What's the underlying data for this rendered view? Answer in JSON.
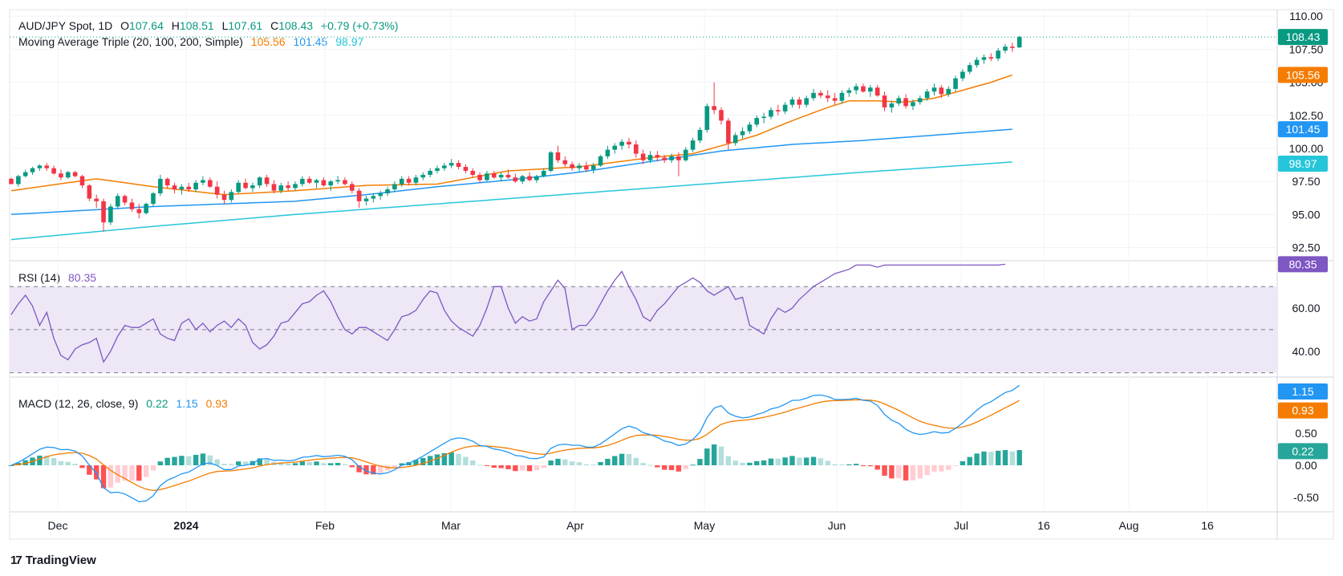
{
  "header": {
    "symbol": "AUD/JPY Spot, 1D",
    "open_label": "O",
    "open": "107.64",
    "high_label": "H",
    "high": "108.51",
    "low_label": "L",
    "low": "107.61",
    "close_label": "C",
    "close": "108.43",
    "change": "+0.79 (+0.73%)",
    "ma_label": "Moving Average Triple (20, 100, 200, Simple)",
    "ma20": "105.56",
    "ma100": "101.45",
    "ma200": "98.97",
    "rsi_label": "RSI (14)",
    "rsi": "80.35",
    "macd_label": "MACD (12, 26, close, 9)",
    "macd_hist": "0.22",
    "macd": "1.15",
    "macd_signal": "0.93"
  },
  "footer": {
    "brand": "TradingView"
  },
  "colors": {
    "up": "#089981",
    "down": "#f23645",
    "ma20": "#f57c00",
    "ma100": "#2196f3",
    "ma200": "#26c6da",
    "rsi": "#7e57c2",
    "rsi_band": "#ede7f6",
    "macd": "#2196f3",
    "signal": "#f57c00",
    "hist_up_strong": "#26a69a",
    "hist_up_weak": "#b2dfdb",
    "hist_down_strong": "#ff5252",
    "hist_down_weak": "#ffcdd2"
  },
  "chart_data": [
    {
      "type": "candlestick",
      "x_ticks": [
        "Dec",
        "2024",
        "Feb",
        "Mar",
        "Apr",
        "May",
        "Jun",
        "Jul",
        "16",
        "Aug",
        "16"
      ],
      "y_ticks": [
        "110.00",
        "107.50",
        "105.00",
        "102.50",
        "100.00",
        "97.50",
        "95.00",
        "92.50"
      ],
      "ylim": [
        91.5,
        110.5
      ],
      "price_tags": {
        "last": "108.43",
        "ma20": "105.56",
        "ma100": "101.45",
        "ma200": "98.97"
      },
      "last_close": 108.43,
      "candles": [
        [
          97.7,
          97.8,
          97.3,
          97.3
        ],
        [
          97.3,
          98.0,
          97.1,
          97.9
        ],
        [
          97.9,
          98.4,
          97.8,
          98.2
        ],
        [
          98.2,
          98.6,
          98.0,
          98.5
        ],
        [
          98.5,
          98.8,
          98.3,
          98.7
        ],
        [
          98.7,
          98.9,
          98.3,
          98.5
        ],
        [
          98.5,
          98.7,
          98.0,
          98.1
        ],
        [
          98.1,
          98.4,
          97.6,
          97.8
        ],
        [
          97.8,
          98.3,
          97.7,
          98.2
        ],
        [
          98.2,
          98.3,
          97.8,
          97.9
        ],
        [
          97.9,
          98.0,
          97.0,
          97.2
        ],
        [
          97.2,
          97.3,
          96.0,
          96.2
        ],
        [
          96.2,
          96.5,
          95.5,
          96.0
        ],
        [
          96.0,
          96.2,
          93.7,
          94.4
        ],
        [
          94.4,
          95.8,
          94.2,
          95.6
        ],
        [
          95.6,
          96.6,
          95.4,
          96.4
        ],
        [
          96.4,
          96.5,
          95.7,
          95.9
        ],
        [
          95.9,
          96.2,
          95.2,
          95.4
        ],
        [
          95.4,
          95.8,
          94.7,
          95.1
        ],
        [
          95.1,
          95.9,
          95.0,
          95.8
        ],
        [
          95.8,
          96.7,
          95.6,
          96.6
        ],
        [
          96.6,
          98.0,
          96.4,
          97.7
        ],
        [
          97.7,
          97.8,
          97.0,
          97.2
        ],
        [
          97.2,
          97.4,
          96.6,
          96.9
        ],
        [
          96.9,
          97.3,
          96.5,
          97.1
        ],
        [
          97.1,
          97.4,
          96.7,
          96.9
        ],
        [
          96.9,
          97.6,
          96.7,
          97.4
        ],
        [
          97.4,
          97.9,
          97.2,
          97.6
        ],
        [
          97.6,
          97.8,
          97.0,
          97.1
        ],
        [
          97.1,
          97.5,
          96.2,
          96.5
        ],
        [
          96.5,
          96.8,
          95.8,
          96.1
        ],
        [
          96.1,
          96.9,
          95.9,
          96.7
        ],
        [
          96.7,
          97.6,
          96.6,
          97.4
        ],
        [
          97.4,
          97.7,
          96.9,
          97.0
        ],
        [
          97.0,
          97.4,
          96.7,
          97.2
        ],
        [
          97.2,
          97.9,
          97.0,
          97.8
        ],
        [
          97.8,
          98.0,
          97.1,
          97.3
        ],
        [
          97.3,
          97.6,
          96.6,
          96.8
        ],
        [
          96.8,
          97.4,
          96.6,
          97.2
        ],
        [
          97.2,
          97.5,
          96.8,
          97.0
        ],
        [
          97.0,
          97.5,
          96.8,
          97.3
        ],
        [
          97.3,
          97.9,
          97.1,
          97.7
        ],
        [
          97.7,
          97.9,
          97.3,
          97.4
        ],
        [
          97.4,
          97.7,
          97.0,
          97.6
        ],
        [
          97.6,
          97.8,
          97.1,
          97.2
        ],
        [
          97.2,
          97.6,
          96.8,
          97.5
        ],
        [
          97.5,
          97.9,
          97.3,
          97.6
        ],
        [
          97.6,
          97.8,
          97.2,
          97.3
        ],
        [
          97.3,
          97.5,
          96.6,
          96.8
        ],
        [
          96.8,
          97.0,
          95.5,
          96.0
        ],
        [
          96.0,
          96.4,
          95.7,
          96.2
        ],
        [
          96.2,
          96.6,
          95.9,
          96.4
        ],
        [
          96.4,
          96.8,
          96.1,
          96.6
        ],
        [
          96.6,
          97.1,
          96.4,
          96.9
        ],
        [
          96.9,
          97.5,
          96.7,
          97.3
        ],
        [
          97.3,
          97.9,
          97.1,
          97.7
        ],
        [
          97.7,
          97.9,
          97.2,
          97.4
        ],
        [
          97.4,
          98.0,
          97.2,
          97.8
        ],
        [
          97.8,
          98.2,
          97.6,
          98.0
        ],
        [
          98.0,
          98.5,
          97.8,
          98.3
        ],
        [
          98.3,
          98.7,
          98.1,
          98.5
        ],
        [
          98.5,
          98.9,
          98.3,
          98.7
        ],
        [
          98.7,
          99.2,
          98.5,
          98.9
        ],
        [
          98.9,
          99.1,
          98.4,
          98.6
        ],
        [
          98.6,
          98.8,
          98.1,
          98.3
        ],
        [
          98.3,
          98.5,
          97.8,
          98.0
        ],
        [
          98.0,
          98.2,
          97.4,
          97.6
        ],
        [
          97.6,
          98.3,
          97.5,
          98.1
        ],
        [
          98.1,
          98.3,
          97.7,
          97.8
        ],
        [
          97.8,
          98.2,
          97.5,
          98.0
        ],
        [
          98.0,
          98.4,
          97.7,
          97.8
        ],
        [
          97.8,
          98.1,
          97.4,
          97.5
        ],
        [
          97.5,
          98.0,
          97.3,
          97.9
        ],
        [
          97.9,
          98.2,
          97.5,
          97.6
        ],
        [
          97.6,
          98.0,
          97.4,
          97.9
        ],
        [
          97.9,
          98.5,
          97.8,
          98.3
        ],
        [
          98.3,
          99.8,
          98.2,
          99.7
        ],
        [
          99.7,
          100.2,
          98.9,
          99.1
        ],
        [
          99.1,
          99.4,
          98.6,
          98.8
        ],
        [
          98.8,
          99.0,
          98.3,
          98.5
        ],
        [
          98.5,
          98.9,
          98.2,
          98.7
        ],
        [
          98.7,
          99.0,
          98.2,
          98.4
        ],
        [
          98.4,
          98.9,
          98.1,
          98.7
        ],
        [
          98.7,
          99.5,
          98.6,
          99.4
        ],
        [
          99.4,
          100.2,
          99.2,
          99.9
        ],
        [
          99.9,
          100.4,
          99.6,
          100.2
        ],
        [
          100.2,
          100.7,
          99.9,
          100.5
        ],
        [
          100.5,
          100.8,
          100.0,
          100.3
        ],
        [
          100.3,
          100.6,
          99.3,
          99.6
        ],
        [
          99.6,
          99.9,
          98.8,
          99.1
        ],
        [
          99.1,
          99.8,
          98.9,
          99.5
        ],
        [
          99.5,
          99.8,
          99.0,
          99.3
        ],
        [
          99.3,
          99.5,
          98.9,
          99.1
        ],
        [
          99.1,
          99.6,
          98.9,
          99.4
        ],
        [
          99.4,
          99.7,
          97.9,
          99.1
        ],
        [
          99.1,
          100.1,
          99.0,
          99.9
        ],
        [
          99.9,
          100.8,
          99.7,
          100.6
        ],
        [
          100.6,
          101.6,
          100.4,
          101.4
        ],
        [
          101.4,
          103.4,
          101.2,
          103.2
        ],
        [
          103.2,
          105.0,
          102.6,
          102.9
        ],
        [
          102.9,
          103.1,
          101.8,
          102.1
        ],
        [
          102.1,
          102.3,
          99.9,
          100.4
        ],
        [
          100.4,
          101.2,
          100.2,
          101.0
        ],
        [
          101.0,
          101.6,
          100.7,
          101.3
        ],
        [
          101.3,
          102.0,
          101.1,
          101.8
        ],
        [
          101.8,
          102.5,
          101.6,
          102.3
        ],
        [
          102.3,
          102.7,
          101.9,
          102.4
        ],
        [
          102.4,
          103.1,
          102.2,
          102.9
        ],
        [
          102.9,
          103.3,
          102.5,
          102.8
        ],
        [
          102.8,
          103.5,
          102.6,
          103.3
        ],
        [
          103.3,
          103.9,
          103.1,
          103.7
        ],
        [
          103.7,
          103.9,
          103.0,
          103.3
        ],
        [
          103.3,
          104.0,
          103.1,
          103.8
        ],
        [
          103.8,
          104.5,
          103.6,
          104.2
        ],
        [
          104.2,
          104.4,
          103.8,
          104.0
        ],
        [
          104.0,
          104.4,
          103.5,
          103.8
        ],
        [
          103.8,
          104.2,
          103.3,
          103.6
        ],
        [
          103.6,
          104.4,
          103.4,
          104.2
        ],
        [
          104.2,
          104.6,
          103.9,
          104.4
        ],
        [
          104.4,
          104.9,
          104.1,
          104.7
        ],
        [
          104.7,
          104.9,
          104.2,
          104.3
        ],
        [
          104.3,
          104.8,
          103.9,
          104.6
        ],
        [
          104.6,
          104.8,
          103.9,
          104.0
        ],
        [
          104.0,
          104.3,
          102.8,
          103.1
        ],
        [
          103.1,
          103.6,
          102.7,
          103.4
        ],
        [
          103.4,
          104.0,
          103.2,
          103.8
        ],
        [
          103.8,
          104.1,
          103.0,
          103.2
        ],
        [
          103.2,
          103.7,
          102.9,
          103.5
        ],
        [
          103.5,
          104.0,
          103.3,
          103.8
        ],
        [
          103.8,
          104.5,
          103.6,
          104.3
        ],
        [
          104.3,
          104.9,
          104.0,
          104.6
        ],
        [
          104.6,
          104.8,
          103.8,
          104.1
        ],
        [
          104.1,
          104.7,
          103.9,
          104.5
        ],
        [
          104.5,
          105.5,
          104.3,
          105.3
        ],
        [
          105.3,
          106.0,
          105.1,
          105.8
        ],
        [
          105.8,
          106.5,
          105.6,
          106.3
        ],
        [
          106.3,
          106.9,
          106.1,
          106.7
        ],
        [
          106.7,
          107.1,
          106.4,
          106.9
        ],
        [
          106.9,
          107.2,
          106.6,
          106.8
        ],
        [
          106.8,
          107.6,
          106.6,
          107.4
        ],
        [
          107.4,
          107.9,
          107.2,
          107.7
        ],
        [
          107.7,
          108.0,
          107.3,
          107.6
        ],
        [
          107.64,
          108.51,
          107.61,
          108.43
        ]
      ],
      "ma20": [
        [
          0,
          96.8
        ],
        [
          12,
          97.7
        ],
        [
          20,
          97.1
        ],
        [
          30,
          96.5
        ],
        [
          40,
          96.8
        ],
        [
          50,
          97.2
        ],
        [
          60,
          97.3
        ],
        [
          70,
          98.3
        ],
        [
          80,
          98.6
        ],
        [
          90,
          99.3
        ],
        [
          96,
          99.6
        ],
        [
          100,
          100.2
        ],
        [
          105,
          101.0
        ],
        [
          110,
          102.1
        ],
        [
          115,
          103.1
        ],
        [
          118,
          103.6
        ],
        [
          122,
          103.6
        ],
        [
          126,
          103.5
        ],
        [
          130,
          103.8
        ],
        [
          134,
          104.4
        ],
        [
          138,
          105.0
        ],
        [
          141,
          105.56
        ]
      ],
      "ma100": [
        [
          0,
          95.0
        ],
        [
          20,
          95.6
        ],
        [
          40,
          96.0
        ],
        [
          50,
          96.5
        ],
        [
          60,
          97.1
        ],
        [
          70,
          97.6
        ],
        [
          80,
          98.2
        ],
        [
          90,
          99.0
        ],
        [
          100,
          99.8
        ],
        [
          110,
          100.3
        ],
        [
          120,
          100.6
        ],
        [
          130,
          101.0
        ],
        [
          141,
          101.45
        ]
      ],
      "ma200": [
        [
          0,
          93.1
        ],
        [
          20,
          94.1
        ],
        [
          40,
          95.0
        ],
        [
          60,
          95.8
        ],
        [
          80,
          96.6
        ],
        [
          100,
          97.4
        ],
        [
          120,
          98.2
        ],
        [
          141,
          98.97
        ]
      ]
    },
    {
      "type": "line",
      "name": "RSI (14)",
      "y_ticks": [
        "60.00",
        "40.00"
      ],
      "ylim": [
        28,
        82
      ],
      "band": [
        30,
        70
      ],
      "midline": 50,
      "last_value": 80.35,
      "values": [
        57,
        62,
        66,
        61,
        52,
        58,
        46,
        38,
        36,
        41,
        43,
        44,
        46,
        35,
        40,
        47,
        52,
        51,
        51,
        53,
        55,
        48,
        46,
        45,
        53,
        55,
        50,
        53,
        49,
        52,
        54,
        51,
        55,
        52,
        44,
        41,
        43,
        47,
        53,
        54,
        58,
        62,
        63,
        66,
        68,
        63,
        56,
        50,
        48,
        51,
        51,
        49,
        47,
        45,
        50,
        56,
        57,
        59,
        64,
        68,
        67,
        59,
        54,
        51,
        49,
        47,
        52,
        60,
        70,
        70,
        60,
        53,
        56,
        54,
        55,
        63,
        68,
        73,
        69,
        50,
        52,
        52,
        56,
        62,
        68,
        73,
        77,
        70,
        64,
        56,
        54,
        59,
        62,
        66,
        70,
        72,
        74,
        72,
        68,
        66,
        68,
        70,
        64,
        65,
        52,
        50,
        48,
        55,
        60,
        58,
        60,
        64,
        67,
        70,
        72,
        74,
        76,
        77,
        78,
        80,
        80,
        80,
        79,
        80,
        80,
        80,
        80,
        80,
        80,
        80,
        80,
        80,
        80,
        80,
        80,
        80,
        80,
        80,
        80,
        80,
        80.35
      ]
    },
    {
      "type": "line",
      "name": "MACD (12, 26, close, 9)",
      "y_ticks": [
        "0.50",
        "0.00",
        "-0.50"
      ],
      "ylim": [
        -0.65,
        1.3
      ],
      "last_macd": 1.15,
      "last_signal": 0.93,
      "last_hist": 0.22
    }
  ]
}
